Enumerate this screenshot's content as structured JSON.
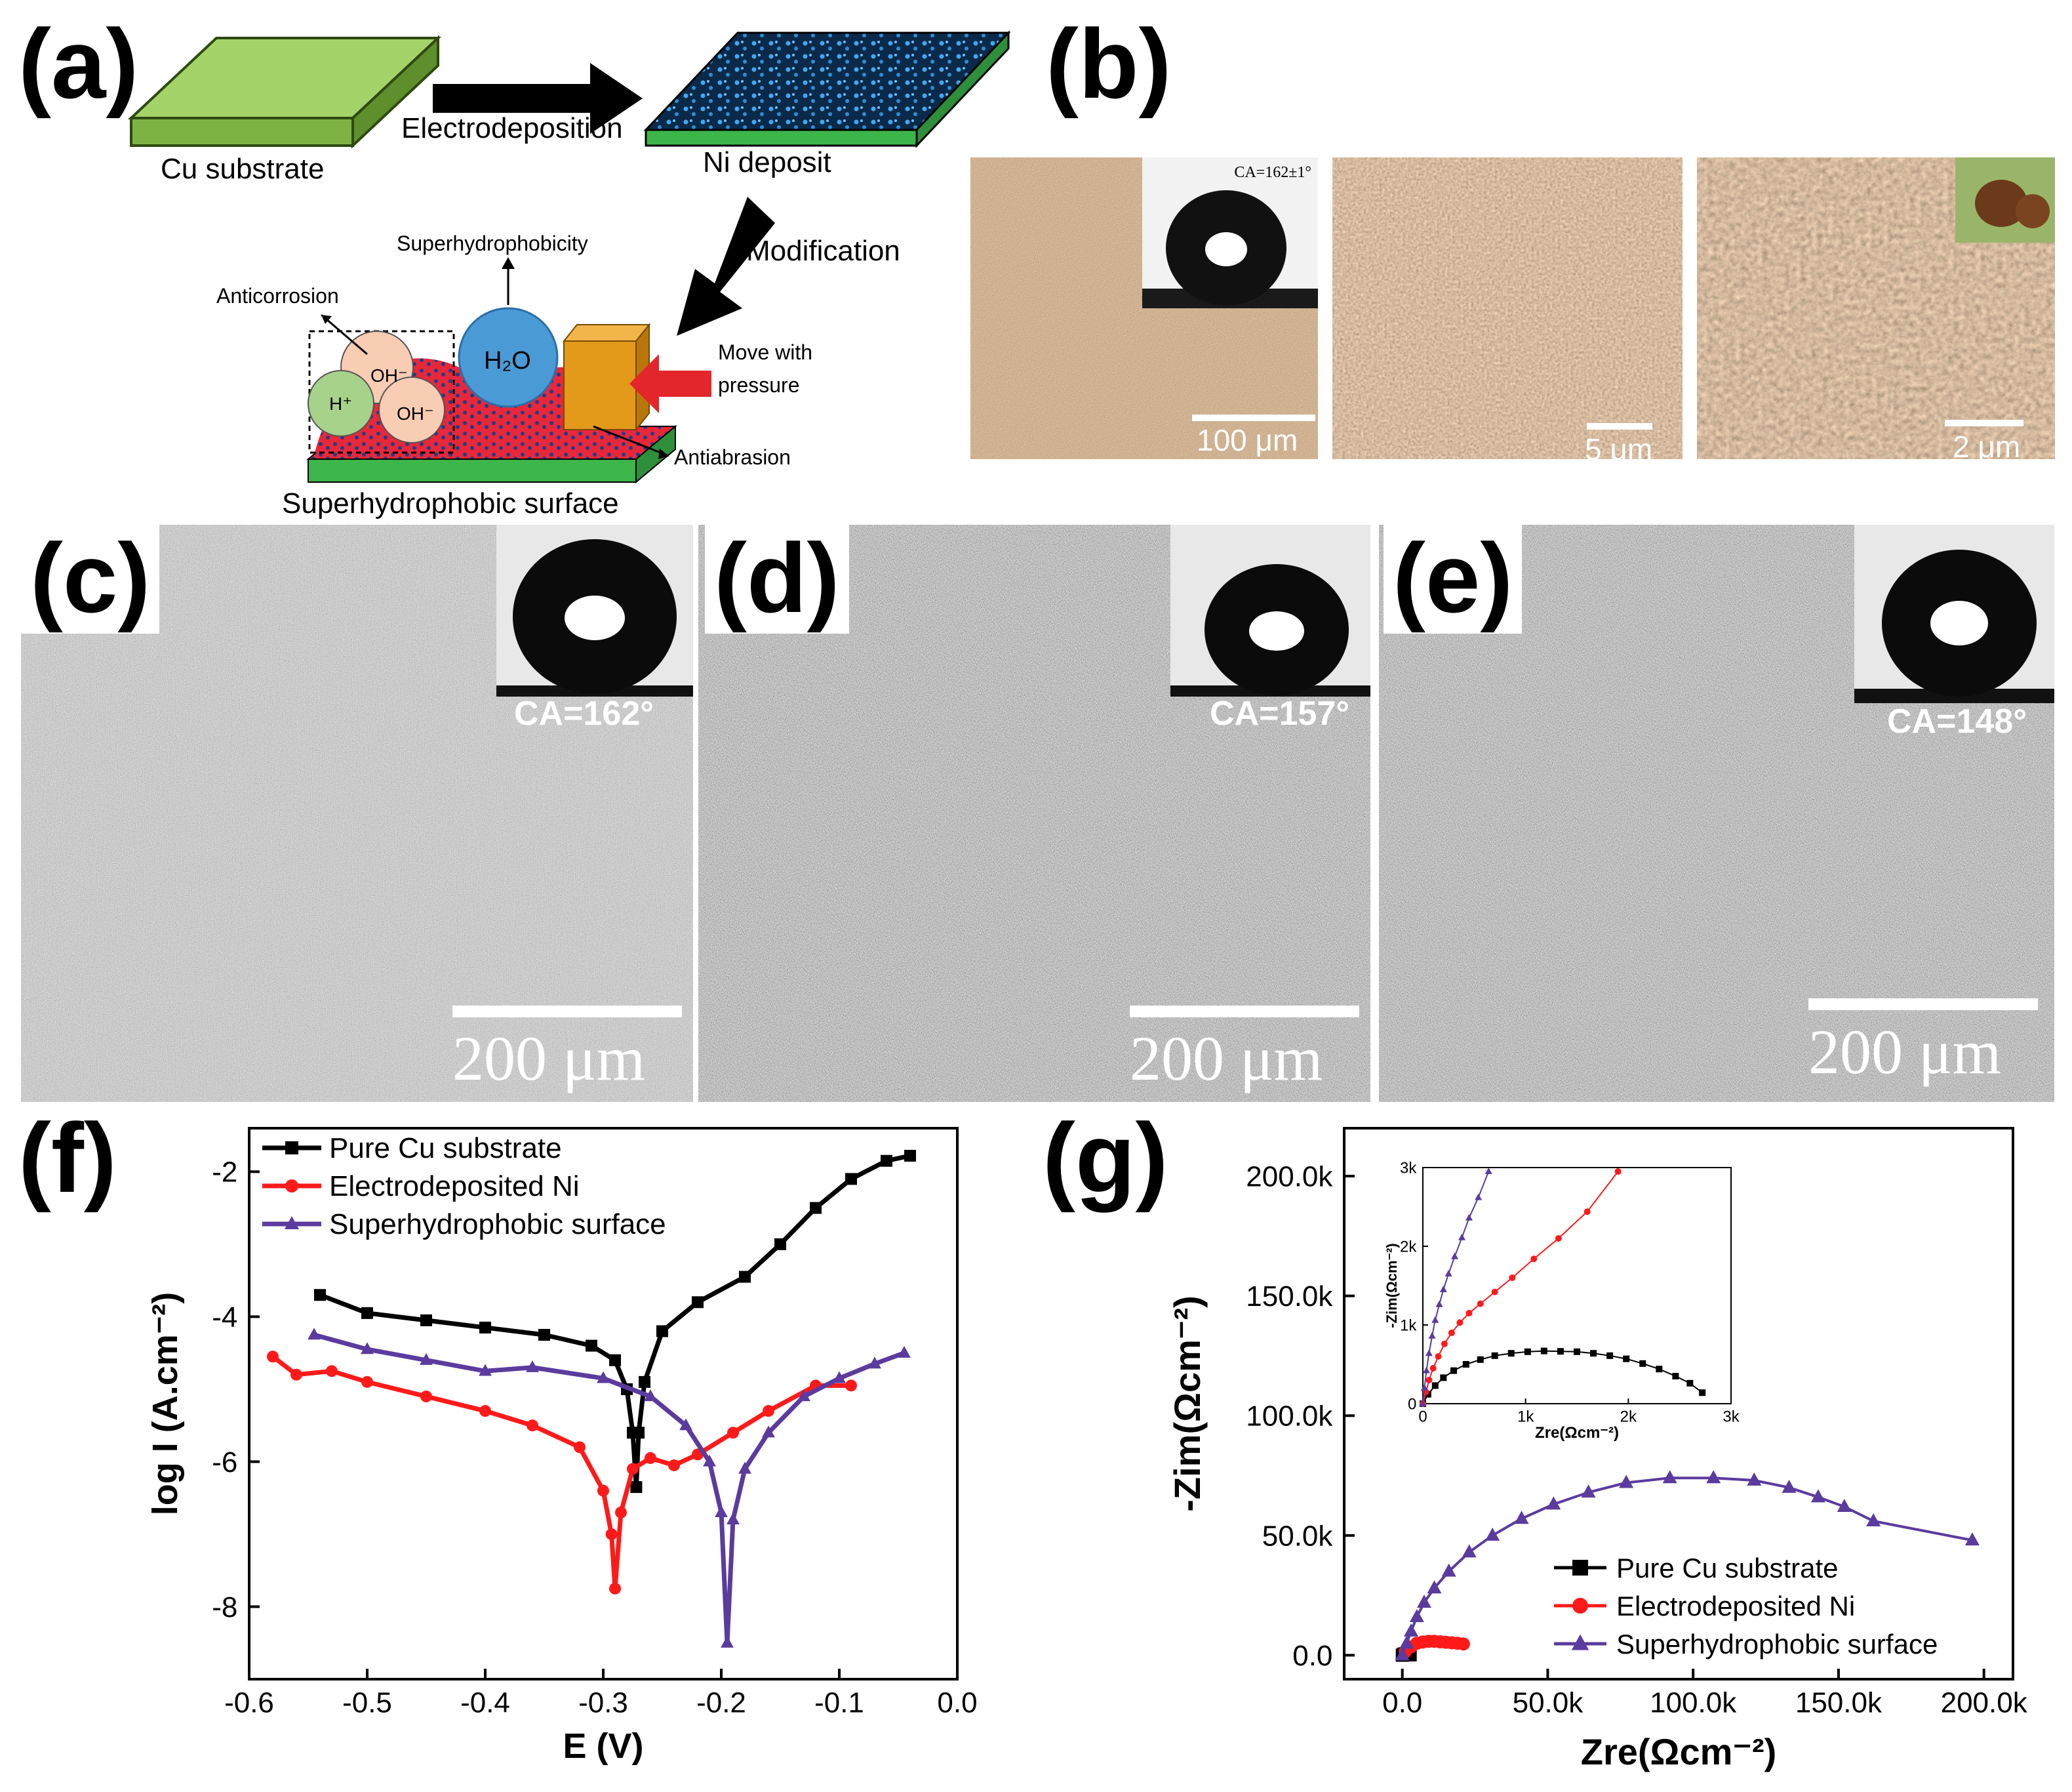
{
  "panels": {
    "a": {
      "label": "(a)",
      "cu_substrate": "Cu substrate",
      "electrodeposition": "Electrodeposition",
      "ni_deposit": "Ni deposit",
      "modification": "Modification",
      "superhydrophobicity": "Superhydrophobicity",
      "anticorrosion": "Anticorrosion",
      "h2o": "H₂O",
      "oh1": "OH⁻",
      "oh2": "OH⁻",
      "hplus": "H⁺",
      "move_line1": "Move with",
      "move_line2": "pressure",
      "antiabrasion": "Antiabrasion",
      "surface": "Superhydrophobic surface"
    },
    "b": {
      "label": "(b)",
      "ca_small": "CA=162±1°",
      "scale1": "100 μm",
      "scale2": "5 μm",
      "scale3": "2 μm"
    },
    "c": {
      "label": "(c)",
      "ca": "CA=162°",
      "scale": "200 μm"
    },
    "d": {
      "label": "(d)",
      "ca": "CA=157°",
      "scale": "200 μm"
    },
    "e": {
      "label": "(e)",
      "ca": "CA=148°",
      "scale": "200 μm"
    },
    "f": {
      "label": "(f)"
    },
    "g": {
      "label": "(g)"
    }
  },
  "colors": {
    "cu": "#000000",
    "ni": "#ff1a1a",
    "shs": "#5b3b9e",
    "substrate_green": "#8cc63f",
    "arrow_red": "#e2262c",
    "block_orange": "#e39a1a"
  },
  "chart_data": [
    {
      "type": "line",
      "panel": "f",
      "xlabel": "E (V)",
      "ylabel": "log I (A.cm⁻²)",
      "xlim": [
        -0.6,
        0.0
      ],
      "ylim": [
        -9,
        -1.4
      ],
      "xticks": [
        -0.6,
        -0.5,
        -0.4,
        -0.3,
        -0.2,
        -0.1,
        0.0
      ],
      "xtick_labels": [
        "-0.6",
        "-0.5",
        "-0.4",
        "-0.3",
        "-0.2",
        "-0.1",
        "0.0"
      ],
      "yticks": [
        -8,
        -6,
        -4,
        -2
      ],
      "ytick_labels": [
        "-8",
        "-6",
        "-4",
        "-2"
      ],
      "legend_position": "top-left",
      "series": [
        {
          "name": "Pure Cu substrate",
          "marker": "square",
          "x": [
            -0.54,
            -0.5,
            -0.45,
            -0.4,
            -0.35,
            -0.31,
            -0.29,
            -0.28,
            -0.275,
            -0.272,
            -0.27,
            -0.265,
            -0.25,
            -0.22,
            -0.18,
            -0.15,
            -0.12,
            -0.09,
            -0.06,
            -0.04
          ],
          "y": [
            -3.7,
            -3.95,
            -4.05,
            -4.15,
            -4.25,
            -4.4,
            -4.6,
            -5.0,
            -5.6,
            -6.35,
            -5.6,
            -4.9,
            -4.2,
            -3.8,
            -3.45,
            -3.0,
            -2.5,
            -2.1,
            -1.85,
            -1.78
          ]
        },
        {
          "name": "Electrodeposited Ni",
          "marker": "circle",
          "x": [
            -0.58,
            -0.56,
            -0.53,
            -0.5,
            -0.45,
            -0.4,
            -0.36,
            -0.32,
            -0.3,
            -0.293,
            -0.29,
            -0.285,
            -0.275,
            -0.26,
            -0.24,
            -0.22,
            -0.19,
            -0.16,
            -0.12,
            -0.09
          ],
          "y": [
            -4.55,
            -4.8,
            -4.75,
            -4.9,
            -5.1,
            -5.3,
            -5.5,
            -5.8,
            -6.4,
            -7.0,
            -7.75,
            -6.7,
            -6.1,
            -5.95,
            -6.05,
            -5.9,
            -5.6,
            -5.3,
            -4.95,
            -4.95
          ]
        },
        {
          "name": "Superhydrophobic surface",
          "marker": "triangle",
          "x": [
            -0.545,
            -0.5,
            -0.45,
            -0.4,
            -0.36,
            -0.3,
            -0.26,
            -0.23,
            -0.21,
            -0.2,
            -0.195,
            -0.19,
            -0.18,
            -0.16,
            -0.13,
            -0.1,
            -0.07,
            -0.045
          ],
          "y": [
            -4.25,
            -4.45,
            -4.6,
            -4.75,
            -4.7,
            -4.85,
            -5.1,
            -5.5,
            -6.0,
            -6.7,
            -8.5,
            -6.8,
            -6.1,
            -5.6,
            -5.1,
            -4.85,
            -4.65,
            -4.5
          ]
        }
      ]
    },
    {
      "type": "scatter",
      "panel": "g",
      "xlabel": "Zre(Ωcm⁻²)",
      "ylabel": "-Zim(Ωcm⁻²)",
      "xlim": [
        -20000,
        210000
      ],
      "ylim": [
        -10000,
        220000
      ],
      "xticks": [
        0,
        50000,
        100000,
        150000,
        200000
      ],
      "xtick_labels": [
        "0.0",
        "50.0k",
        "100.0k",
        "150.0k",
        "200.0k"
      ],
      "yticks": [
        0,
        50000,
        100000,
        150000,
        200000
      ],
      "ytick_labels": [
        "0.0",
        "50.0k",
        "100.0k",
        "150.0k",
        "200.0k"
      ],
      "legend_position": "bottom-right",
      "series": [
        {
          "name": "Pure Cu substrate",
          "marker": "square",
          "x": [
            0,
            300,
            700,
            1100,
            1500,
            1900,
            2300,
            2700
          ],
          "y": [
            0,
            300,
            500,
            600,
            650,
            600,
            450,
            150
          ]
        },
        {
          "name": "Electrodeposited Ni",
          "marker": "circle",
          "x": [
            1000,
            3000,
            5000,
            7000,
            9000,
            11000,
            13000,
            15000,
            17000,
            19000,
            21000
          ],
          "y": [
            1500,
            3500,
            5000,
            5500,
            5800,
            5800,
            5600,
            5400,
            5200,
            5000,
            4700
          ]
        },
        {
          "name": "Superhydrophobic surface",
          "marker": "triangle",
          "x": [
            0,
            1500,
            3000,
            5000,
            7500,
            11000,
            16000,
            23000,
            31000,
            41000,
            52000,
            64000,
            77000,
            92000,
            107000,
            121000,
            133000,
            143000,
            152000,
            162000,
            196000
          ],
          "y": [
            0,
            5000,
            10000,
            16000,
            22000,
            28000,
            35000,
            43000,
            50000,
            57000,
            63000,
            68000,
            72000,
            74000,
            74000,
            73000,
            70000,
            66000,
            62000,
            56000,
            48000
          ]
        }
      ],
      "inset": {
        "xlim": [
          0,
          3000
        ],
        "ylim": [
          0,
          3000
        ],
        "xticks": [
          0,
          1000,
          2000,
          3000
        ],
        "xtick_labels": [
          "0",
          "1k",
          "2k",
          "3k"
        ],
        "yticks": [
          0,
          1000,
          2000,
          3000
        ],
        "ytick_labels": [
          "0",
          "1k",
          "2k",
          "3k"
        ],
        "xlabel": "Zre(Ωcm⁻²)",
        "ylabel": "-Zim(Ωcm⁻²)",
        "series": [
          {
            "name": "Pure Cu substrate",
            "marker": "square",
            "x": [
              0,
              50,
              120,
              200,
              300,
              420,
              560,
              700,
              860,
              1020,
              1180,
              1340,
              1500,
              1660,
              1820,
              1980,
              2140,
              2300,
              2460,
              2600,
              2720
            ],
            "y": [
              0,
              120,
              230,
              330,
              420,
              500,
              560,
              610,
              640,
              660,
              670,
              665,
              660,
              640,
              610,
              570,
              510,
              440,
              350,
              260,
              140
            ]
          },
          {
            "name": "Electrodeposited Ni",
            "marker": "circle",
            "x": [
              0,
              30,
              60,
              100,
              150,
              210,
              280,
              360,
              450,
              560,
              700,
              870,
              1080,
              1320,
              1600,
              1900
            ],
            "y": [
              0,
              150,
              300,
              450,
              600,
              760,
              900,
              1030,
              1150,
              1270,
              1420,
              1600,
              1840,
              2100,
              2440,
              2950
            ]
          },
          {
            "name": "Superhydrophobic surface",
            "marker": "triangle",
            "x": [
              0,
              15,
              35,
              60,
              90,
              120,
              160,
              200,
              250,
              310,
              380,
              450,
              540,
              640
            ],
            "y": [
              0,
              200,
              420,
              640,
              860,
              1060,
              1260,
              1450,
              1650,
              1870,
              2110,
              2360,
              2620,
              2950
            ]
          }
        ]
      }
    }
  ]
}
